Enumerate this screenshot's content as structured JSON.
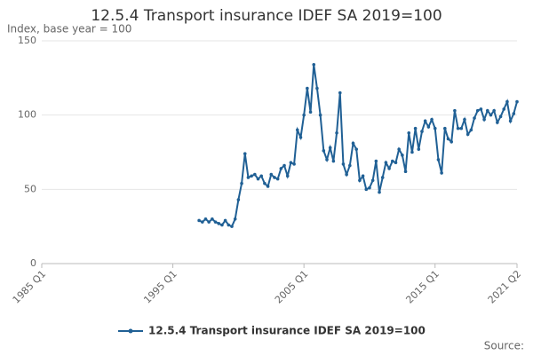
{
  "chart_data": {
    "type": "line",
    "title": "12.5.4 Transport insurance IDEF SA 2019=100",
    "subtitle": "Index, base year = 100",
    "source": "Source:",
    "x": [
      1997,
      1997.25,
      1997.5,
      1997.75,
      1998,
      1998.25,
      1998.5,
      1998.75,
      1999,
      1999.25,
      1999.5,
      1999.75,
      2000,
      2000.25,
      2000.5,
      2000.75,
      2001,
      2001.25,
      2001.5,
      2001.75,
      2002,
      2002.25,
      2002.5,
      2002.75,
      2003,
      2003.25,
      2003.5,
      2003.75,
      2004,
      2004.25,
      2004.5,
      2004.75,
      2005,
      2005.25,
      2005.5,
      2005.75,
      2006,
      2006.25,
      2006.5,
      2006.75,
      2007,
      2007.25,
      2007.5,
      2007.75,
      2008,
      2008.25,
      2008.5,
      2008.75,
      2009,
      2009.25,
      2009.5,
      2009.75,
      2010,
      2010.25,
      2010.5,
      2010.75,
      2011,
      2011.25,
      2011.5,
      2011.75,
      2012,
      2012.25,
      2012.5,
      2012.75,
      2013,
      2013.25,
      2013.5,
      2013.75,
      2014,
      2014.25,
      2014.5,
      2014.75,
      2015,
      2015.25,
      2015.5,
      2015.75,
      2016,
      2016.25,
      2016.5,
      2016.75,
      2017,
      2017.25,
      2017.5,
      2017.75,
      2018,
      2018.25,
      2018.5,
      2018.75,
      2019,
      2019.25,
      2019.5,
      2019.75,
      2020,
      2020.25,
      2020.5,
      2020.75,
      2021,
      2021.25
    ],
    "series": [
      {
        "name": "12.5.4 Transport insurance IDEF SA 2019=100",
        "color": "#206095",
        "values": [
          29,
          28,
          30,
          28,
          30,
          28,
          27,
          26,
          29,
          26,
          25,
          30,
          43,
          54,
          74,
          58,
          59,
          60,
          57,
          59,
          54,
          52,
          60,
          58,
          57,
          64,
          66,
          59,
          68,
          67,
          90,
          85,
          100,
          118,
          102,
          134,
          118,
          100,
          76,
          70,
          78,
          69,
          88,
          115,
          67,
          60,
          66,
          81,
          77,
          56,
          59,
          50,
          51,
          56,
          69,
          48,
          58,
          68,
          64,
          69,
          68,
          77,
          73,
          62,
          88,
          75,
          91,
          77,
          89,
          96,
          92,
          97,
          91,
          70,
          61,
          91,
          84,
          82,
          103,
          91,
          91,
          97,
          87,
          90,
          98,
          103,
          104,
          97,
          103,
          100,
          103,
          95,
          99,
          104,
          109,
          96,
          101,
          109
        ]
      }
    ],
    "xlim": [
      1985,
      2021.25
    ],
    "xticks": [
      {
        "value": 1985,
        "label": "1985 Q1"
      },
      {
        "value": 1995,
        "label": "1995 Q1"
      },
      {
        "value": 2005,
        "label": "2005 Q1"
      },
      {
        "value": 2015,
        "label": "2015 Q1"
      },
      {
        "value": 2021.25,
        "label": "2021 Q2"
      }
    ],
    "ylim": [
      0,
      150
    ],
    "yticks": [
      0,
      50,
      100,
      150
    ],
    "grid": true
  }
}
